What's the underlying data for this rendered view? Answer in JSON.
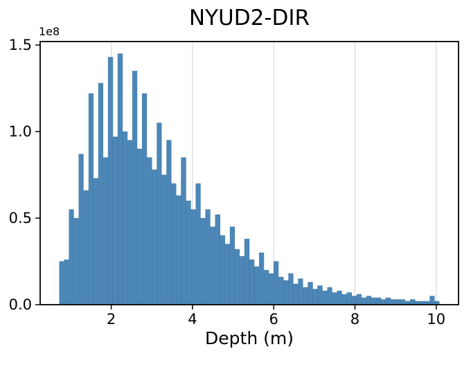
{
  "chart_data": {
    "type": "bar",
    "subtype": "histogram",
    "title": "NYUD2-DIR",
    "xlabel": "Depth (m)",
    "ylabel": "",
    "y_offset_label": "1e8",
    "y_unit_multiplier": 100000000,
    "xlim": [
      0.25,
      10.55
    ],
    "ylim": [
      0,
      1.52
    ],
    "x_ticks": [
      2,
      4,
      6,
      8,
      10
    ],
    "x_tick_labels": [
      "2",
      "4",
      "6",
      "8",
      "10"
    ],
    "y_ticks": [
      0.0,
      0.5,
      1.0,
      1.5
    ],
    "y_tick_labels": [
      "0.0",
      "0.5",
      "1.0",
      "1.5"
    ],
    "grid": "vertical-only",
    "grid_color": "#d9d9d9",
    "bar_color": "#4c87b7",
    "bar_edge_color": "#38699357",
    "spine_color": "#000000",
    "bin_start": 0.72,
    "bin_width": 0.12,
    "counts_1e8": [
      0.25,
      0.26,
      0.55,
      0.5,
      0.87,
      0.66,
      1.22,
      0.73,
      1.28,
      0.85,
      1.43,
      0.97,
      1.45,
      1.0,
      0.95,
      1.35,
      0.9,
      1.22,
      0.85,
      0.78,
      1.05,
      0.75,
      0.95,
      0.7,
      0.63,
      0.85,
      0.6,
      0.55,
      0.7,
      0.5,
      0.55,
      0.45,
      0.52,
      0.4,
      0.35,
      0.45,
      0.32,
      0.28,
      0.38,
      0.26,
      0.22,
      0.3,
      0.2,
      0.18,
      0.25,
      0.16,
      0.14,
      0.18,
      0.12,
      0.15,
      0.1,
      0.13,
      0.09,
      0.11,
      0.08,
      0.1,
      0.07,
      0.08,
      0.06,
      0.07,
      0.05,
      0.06,
      0.04,
      0.05,
      0.04,
      0.04,
      0.03,
      0.04,
      0.03,
      0.03,
      0.03,
      0.02,
      0.03,
      0.02,
      0.02,
      0.02,
      0.05,
      0.02
    ]
  }
}
